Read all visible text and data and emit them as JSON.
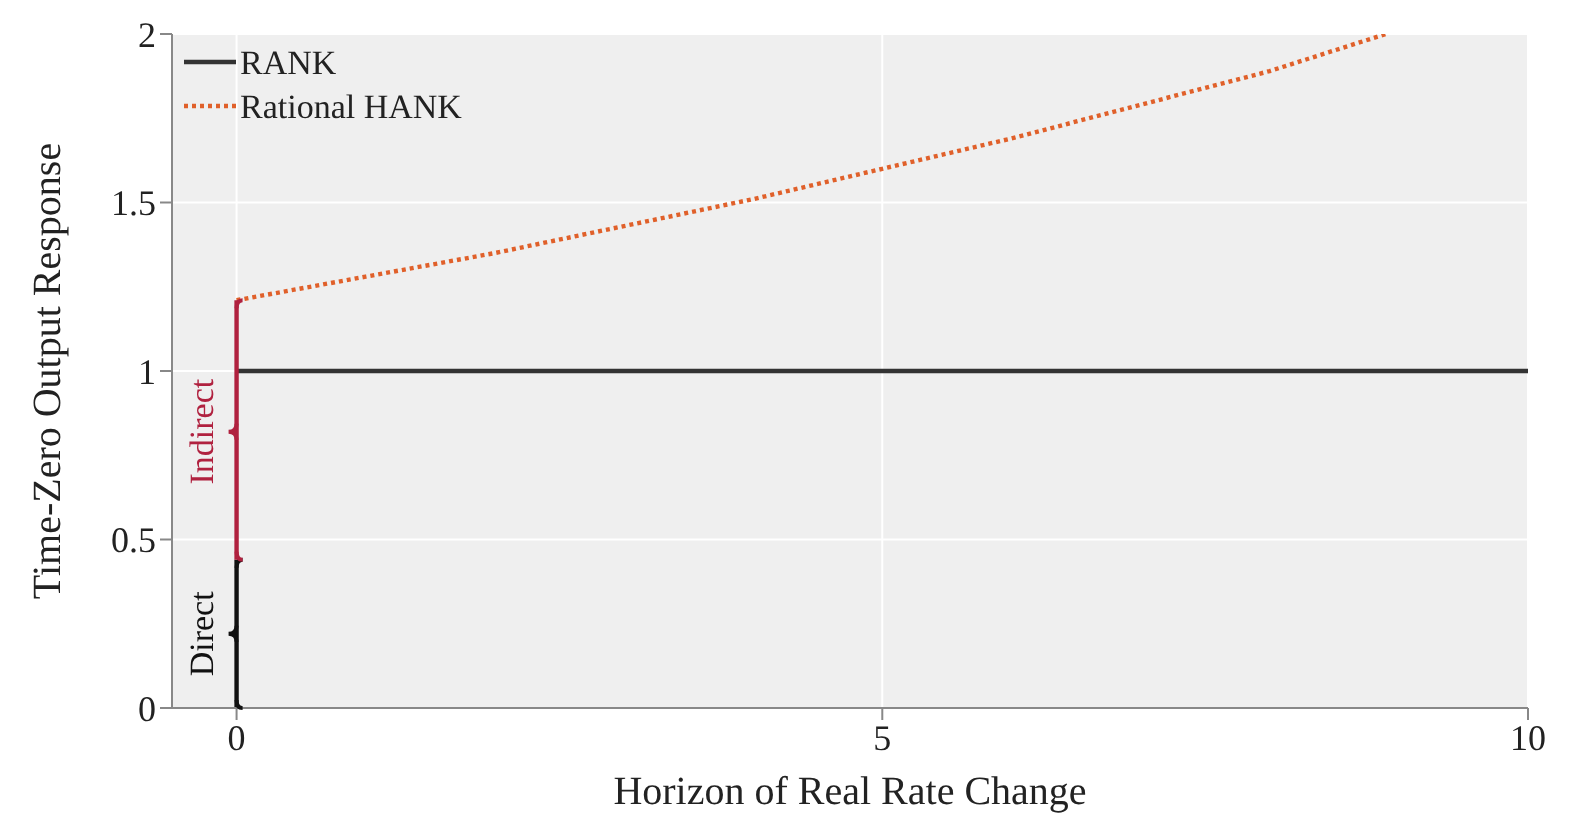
{
  "chart_data": {
    "type": "line",
    "xlabel": "Horizon of Real Rate Change",
    "ylabel": "Time-Zero Output Response",
    "xlim": [
      -0.5,
      10
    ],
    "ylim": [
      0,
      2
    ],
    "xticks": [
      0,
      5,
      10
    ],
    "yticks": [
      0,
      0.5,
      1,
      1.5,
      2
    ],
    "grid": true,
    "legend": "top left",
    "marker": "none",
    "series": [
      {
        "name": "RANK",
        "color": "#333333",
        "line_style": "solid",
        "x": [
          0,
          10
        ],
        "values": [
          1,
          1
        ]
      },
      {
        "name": "Rational HANK",
        "color": "#e0602a",
        "line_style": "dotted",
        "x": [
          0,
          1,
          2,
          3,
          4,
          5,
          6,
          7,
          8,
          8.9
        ],
        "values": [
          1.21,
          1.28,
          1.35,
          1.43,
          1.51,
          1.6,
          1.69,
          1.79,
          1.89,
          2.0
        ]
      },
      {
        "color": "#111111",
        "line_style": "solid",
        "x": [
          0,
          0
        ],
        "values": [
          0,
          0.44
        ]
      },
      {
        "color": "#b0213f",
        "line_style": "solid",
        "x": [
          0,
          0
        ],
        "values": [
          0.44,
          1.21
        ]
      }
    ],
    "annotations": [
      {
        "text": "Direct",
        "x": 0,
        "y": 0.22
      },
      {
        "text": "Indirect",
        "x": 0,
        "y": 0.82
      }
    ]
  }
}
